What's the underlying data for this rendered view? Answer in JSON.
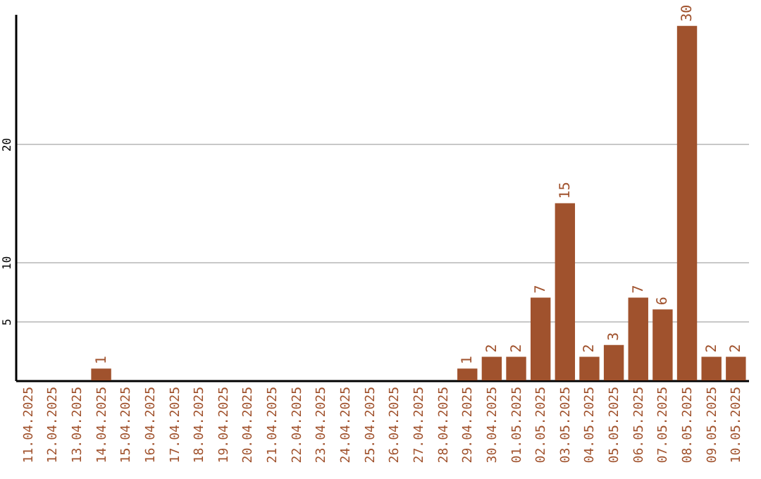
{
  "chart_data": {
    "type": "bar",
    "categories": [
      "11.04.2025",
      "12.04.2025",
      "13.04.2025",
      "14.04.2025",
      "15.04.2025",
      "16.04.2025",
      "17.04.2025",
      "18.04.2025",
      "19.04.2025",
      "20.04.2025",
      "21.04.2025",
      "22.04.2025",
      "23.04.2025",
      "24.04.2025",
      "25.04.2025",
      "26.04.2025",
      "27.04.2025",
      "28.04.2025",
      "29.04.2025",
      "30.04.2025",
      "01.05.2025",
      "02.05.2025",
      "03.05.2025",
      "04.05.2025",
      "05.05.2025",
      "06.05.2025",
      "07.05.2025",
      "08.05.2025",
      "09.05.2025",
      "10.05.2025"
    ],
    "values": [
      0,
      0,
      0,
      1,
      0,
      0,
      0,
      0,
      0,
      0,
      0,
      0,
      0,
      0,
      0,
      0,
      0,
      0,
      1,
      2,
      2,
      7,
      15,
      2,
      3,
      7,
      6,
      30,
      2,
      2
    ],
    "value_labels": [
      null,
      null,
      null,
      "1",
      null,
      null,
      null,
      null,
      null,
      null,
      null,
      null,
      null,
      null,
      null,
      null,
      null,
      null,
      "1",
      "2",
      "2",
      "7",
      "15",
      "2",
      "3",
      "7",
      "6",
      "30",
      "2",
      "2"
    ],
    "color": "#a0522d",
    "ylim": [
      0,
      31
    ],
    "yticks": [
      5,
      10,
      20
    ],
    "grid": "y"
  }
}
